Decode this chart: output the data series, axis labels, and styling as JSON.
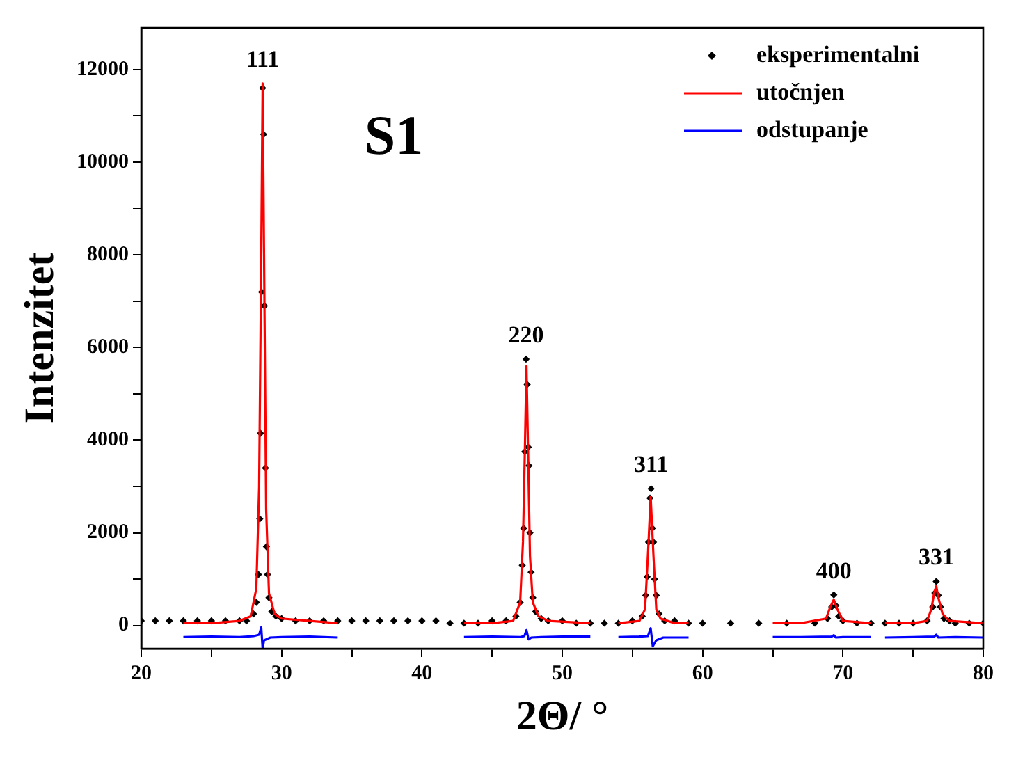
{
  "chart_data": {
    "type": "line",
    "xlabel": "2Θ/ °",
    "ylabel": "Intenzitet",
    "xlim": [
      20,
      80
    ],
    "ylim": [
      -500,
      12900
    ],
    "xticks": [
      20,
      {
        "value": 25,
        "label": null
      },
      30,
      {
        "value": 35,
        "label": null
      },
      40,
      {
        "value": 45,
        "label": null
      },
      50,
      {
        "value": 55,
        "label": null
      },
      60,
      {
        "value": 65,
        "label": null
      },
      70,
      {
        "value": 75,
        "label": null
      },
      80
    ],
    "yticks": [
      0,
      {
        "value": 1000,
        "label": null
      },
      2000,
      {
        "value": 3000,
        "label": null
      },
      4000,
      {
        "value": 5000,
        "label": null
      },
      6000,
      {
        "value": 7000,
        "label": null
      },
      8000,
      {
        "value": 9000,
        "label": null
      },
      10000,
      {
        "value": 11000,
        "label": null
      },
      12000
    ],
    "grid": false,
    "legend": "top right",
    "line_style": "solid",
    "annotations": [
      "S1",
      {
        "text": "111",
        "x": 28.65,
        "y": 11700
      },
      {
        "text": "220",
        "x": 47.42,
        "y": 5750
      },
      {
        "text": "311",
        "x": 56.33,
        "y": 2950
      },
      {
        "text": "400",
        "x": 69.35,
        "y": 660
      },
      {
        "text": "331",
        "x": 76.65,
        "y": 950
      }
    ],
    "series": [
      {
        "name": "eksperimentalni",
        "type": "scatter",
        "marker": "diamond",
        "color": "#000000",
        "x": [
          20,
          21,
          22,
          23,
          24,
          25,
          26,
          27,
          27.5,
          28,
          28.2,
          28.35,
          28.45,
          28.5,
          28.58,
          28.65,
          28.72,
          28.78,
          28.85,
          28.92,
          29,
          29.1,
          29.3,
          29.6,
          30,
          31,
          32,
          33,
          34,
          35,
          36,
          37,
          38,
          39,
          40,
          41,
          42,
          43,
          44,
          45,
          46,
          46.7,
          47,
          47.15,
          47.25,
          47.33,
          47.42,
          47.5,
          47.58,
          47.63,
          47.7,
          47.78,
          47.9,
          48.1,
          48.5,
          49,
          50,
          51,
          52,
          53,
          54,
          55,
          55.7,
          55.95,
          56.05,
          56.15,
          56.25,
          56.33,
          56.42,
          56.5,
          56.58,
          56.7,
          56.9,
          57.3,
          58,
          59,
          60,
          62,
          64,
          66,
          68,
          68.9,
          69.2,
          69.35,
          69.5,
          69.7,
          70,
          71,
          72,
          73,
          74,
          75,
          76,
          76.4,
          76.55,
          76.65,
          76.8,
          76.95,
          77.2,
          77.6,
          78,
          79,
          80
        ],
        "values": [
          100,
          100,
          100,
          100,
          100,
          100,
          100,
          100,
          100,
          250,
          500,
          1100,
          2300,
          4150,
          7200,
          11600,
          10600,
          6900,
          3400,
          1700,
          1100,
          600,
          300,
          200,
          150,
          100,
          100,
          100,
          100,
          100,
          100,
          100,
          100,
          100,
          100,
          100,
          50,
          50,
          50,
          100,
          100,
          200,
          500,
          1300,
          2100,
          3750,
          5750,
          5200,
          3850,
          3450,
          2000,
          1150,
          600,
          300,
          150,
          100,
          100,
          50,
          50,
          50,
          50,
          100,
          200,
          650,
          1050,
          1800,
          2750,
          2950,
          2100,
          1800,
          1000,
          650,
          250,
          100,
          100,
          50,
          50,
          50,
          50,
          50,
          50,
          150,
          400,
          660,
          430,
          200,
          100,
          50,
          50,
          50,
          50,
          50,
          100,
          400,
          700,
          950,
          650,
          400,
          150,
          100,
          50,
          50,
          50
        ]
      },
      {
        "name": "utočnjen",
        "type": "line",
        "color": "#ff0000",
        "x": [
          23,
          25,
          27,
          27.8,
          28.2,
          28.4,
          28.55,
          28.65,
          28.75,
          28.9,
          29.1,
          29.5,
          30,
          32,
          34,
          38,
          43,
          45,
          46.5,
          47,
          47.2,
          47.35,
          47.45,
          47.55,
          47.7,
          47.9,
          48.3,
          49,
          52,
          53,
          54,
          55.5,
          55.9,
          56.1,
          56.3,
          56.5,
          56.7,
          57,
          58,
          59,
          62,
          65,
          67,
          68.8,
          69.1,
          69.35,
          69.6,
          70,
          72,
          72.5,
          73,
          75,
          76,
          76.3,
          76.5,
          76.65,
          76.8,
          77.1,
          77.6,
          80
        ],
        "values": [
          50,
          50,
          100,
          200,
          800,
          3000,
          8000,
          11700,
          8000,
          2500,
          700,
          250,
          150,
          100,
          50,
          null,
          50,
          50,
          100,
          500,
          1800,
          4000,
          5600,
          4000,
          1500,
          500,
          200,
          100,
          50,
          null,
          50,
          100,
          350,
          1500,
          2780,
          1500,
          350,
          150,
          50,
          50,
          null,
          50,
          50,
          150,
          400,
          560,
          350,
          100,
          50,
          null,
          50,
          50,
          100,
          350,
          700,
          850,
          600,
          250,
          100,
          50
        ]
      },
      {
        "name": "odstupanje",
        "type": "line",
        "color": "#0000ff",
        "x": [
          23,
          25,
          27,
          28,
          28.4,
          28.55,
          28.65,
          28.75,
          28.9,
          29.2,
          30,
          32,
          34,
          38,
          43,
          45,
          47,
          47.3,
          47.45,
          47.6,
          47.8,
          48.5,
          50,
          52,
          53,
          54,
          55.5,
          56.1,
          56.3,
          56.45,
          56.7,
          57.2,
          59,
          62,
          65,
          67,
          69.2,
          69.35,
          69.5,
          70,
          72,
          72.5,
          73,
          75,
          76.5,
          76.65,
          76.8,
          78,
          80
        ],
        "values": [
          -250,
          -240,
          -250,
          -230,
          -200,
          -40,
          -500,
          -320,
          -300,
          -260,
          -250,
          -240,
          -260,
          null,
          -250,
          -240,
          -250,
          -230,
          -100,
          -300,
          -260,
          -250,
          -240,
          -240,
          null,
          -250,
          -240,
          -230,
          -60,
          -450,
          -320,
          -260,
          -260,
          null,
          -250,
          -250,
          -240,
          -210,
          -260,
          -250,
          -250,
          null,
          -260,
          -250,
          -240,
          -200,
          -260,
          -250,
          -260
        ]
      }
    ]
  }
}
